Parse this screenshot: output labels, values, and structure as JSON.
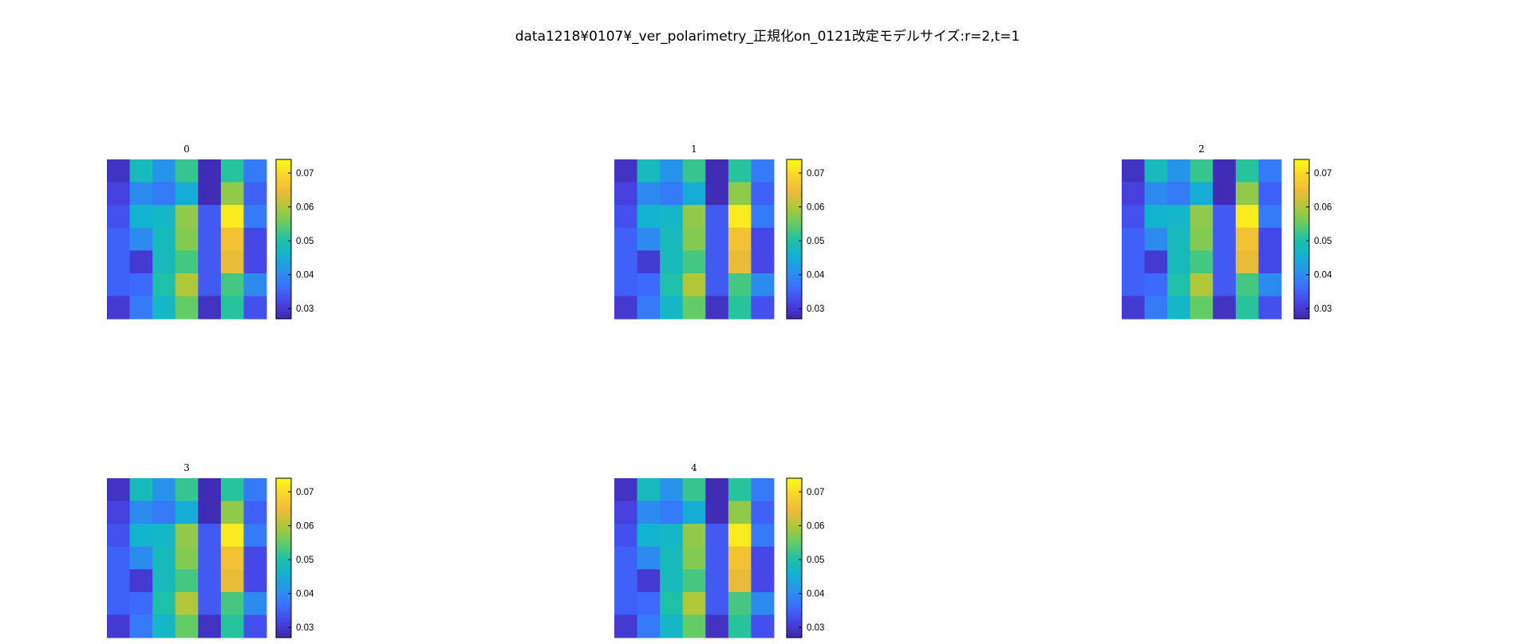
{
  "figure_title": "data1218¥0107¥_ver_polarimetry_正規化on_0121改定モデルサイズ:r=2,t=1",
  "colormap": "parula",
  "chart_data": [
    {
      "type": "heatmap",
      "title": "0",
      "clim": [
        0.027,
        0.074
      ],
      "colorbar_ticks": [
        "0.03",
        "0.04",
        "0.05",
        "0.06",
        "0.07"
      ],
      "values": [
        [
          0.029,
          0.048,
          0.041,
          0.052,
          0.028,
          0.051,
          0.038
        ],
        [
          0.031,
          0.04,
          0.038,
          0.045,
          0.028,
          0.058,
          0.035
        ],
        [
          0.033,
          0.046,
          0.047,
          0.058,
          0.034,
          0.072,
          0.038
        ],
        [
          0.035,
          0.04,
          0.048,
          0.057,
          0.034,
          0.066,
          0.032
        ],
        [
          0.035,
          0.03,
          0.048,
          0.053,
          0.034,
          0.064,
          0.032
        ],
        [
          0.035,
          0.036,
          0.05,
          0.06,
          0.034,
          0.053,
          0.04
        ],
        [
          0.03,
          0.038,
          0.047,
          0.055,
          0.029,
          0.051,
          0.033
        ]
      ]
    },
    {
      "type": "heatmap",
      "title": "1",
      "clim": [
        0.027,
        0.074
      ],
      "colorbar_ticks": [
        "0.03",
        "0.04",
        "0.05",
        "0.06",
        "0.07"
      ],
      "values": [
        [
          0.029,
          0.048,
          0.041,
          0.052,
          0.028,
          0.051,
          0.038
        ],
        [
          0.031,
          0.04,
          0.038,
          0.045,
          0.028,
          0.058,
          0.035
        ],
        [
          0.033,
          0.046,
          0.047,
          0.058,
          0.034,
          0.072,
          0.038
        ],
        [
          0.035,
          0.04,
          0.048,
          0.057,
          0.034,
          0.066,
          0.032
        ],
        [
          0.035,
          0.03,
          0.048,
          0.053,
          0.034,
          0.064,
          0.032
        ],
        [
          0.035,
          0.036,
          0.05,
          0.06,
          0.034,
          0.053,
          0.04
        ],
        [
          0.03,
          0.038,
          0.047,
          0.055,
          0.029,
          0.051,
          0.033
        ]
      ]
    },
    {
      "type": "heatmap",
      "title": "2",
      "clim": [
        0.027,
        0.074
      ],
      "colorbar_ticks": [
        "0.03",
        "0.04",
        "0.05",
        "0.06",
        "0.07"
      ],
      "values": [
        [
          0.029,
          0.048,
          0.041,
          0.052,
          0.028,
          0.051,
          0.038
        ],
        [
          0.031,
          0.04,
          0.038,
          0.045,
          0.028,
          0.058,
          0.035
        ],
        [
          0.033,
          0.046,
          0.047,
          0.058,
          0.034,
          0.072,
          0.038
        ],
        [
          0.035,
          0.04,
          0.048,
          0.057,
          0.034,
          0.066,
          0.032
        ],
        [
          0.035,
          0.03,
          0.048,
          0.053,
          0.034,
          0.064,
          0.032
        ],
        [
          0.035,
          0.036,
          0.05,
          0.06,
          0.034,
          0.053,
          0.04
        ],
        [
          0.03,
          0.038,
          0.047,
          0.055,
          0.029,
          0.051,
          0.033
        ]
      ]
    },
    {
      "type": "heatmap",
      "title": "3",
      "clim": [
        0.027,
        0.074
      ],
      "colorbar_ticks": [
        "0.03",
        "0.04",
        "0.05",
        "0.06",
        "0.07"
      ],
      "values": [
        [
          0.029,
          0.048,
          0.041,
          0.052,
          0.028,
          0.051,
          0.038
        ],
        [
          0.031,
          0.04,
          0.038,
          0.045,
          0.028,
          0.058,
          0.035
        ],
        [
          0.033,
          0.046,
          0.047,
          0.058,
          0.034,
          0.072,
          0.038
        ],
        [
          0.035,
          0.04,
          0.048,
          0.057,
          0.034,
          0.066,
          0.032
        ],
        [
          0.035,
          0.03,
          0.048,
          0.053,
          0.034,
          0.064,
          0.032
        ],
        [
          0.035,
          0.036,
          0.05,
          0.06,
          0.034,
          0.053,
          0.04
        ],
        [
          0.03,
          0.038,
          0.047,
          0.055,
          0.029,
          0.051,
          0.033
        ]
      ]
    },
    {
      "type": "heatmap",
      "title": "4",
      "clim": [
        0.027,
        0.074
      ],
      "colorbar_ticks": [
        "0.03",
        "0.04",
        "0.05",
        "0.06",
        "0.07"
      ],
      "values": [
        [
          0.029,
          0.048,
          0.041,
          0.052,
          0.028,
          0.051,
          0.038
        ],
        [
          0.031,
          0.04,
          0.038,
          0.045,
          0.028,
          0.058,
          0.035
        ],
        [
          0.033,
          0.046,
          0.047,
          0.058,
          0.034,
          0.072,
          0.038
        ],
        [
          0.035,
          0.04,
          0.048,
          0.057,
          0.034,
          0.066,
          0.032
        ],
        [
          0.035,
          0.03,
          0.048,
          0.053,
          0.034,
          0.064,
          0.032
        ],
        [
          0.035,
          0.036,
          0.05,
          0.06,
          0.034,
          0.053,
          0.04
        ],
        [
          0.03,
          0.038,
          0.047,
          0.055,
          0.029,
          0.051,
          0.033
        ]
      ]
    }
  ]
}
